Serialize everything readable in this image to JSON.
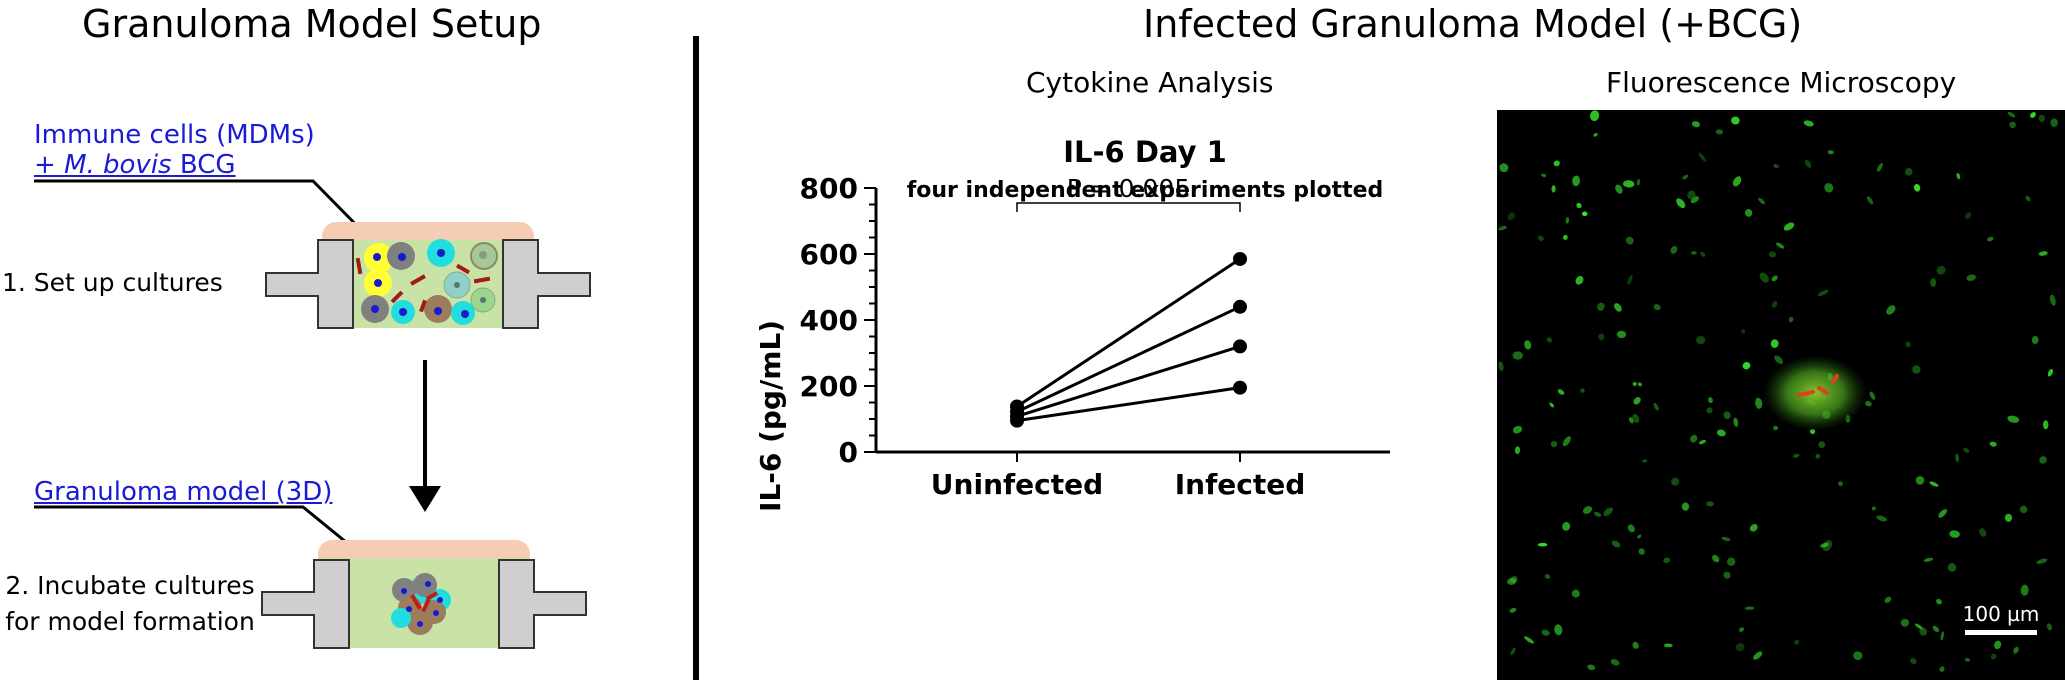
{
  "left_panel": {
    "title": "Granuloma Model Setup",
    "label_top_line1": "Immune cells (MDMs)",
    "label_top_line2_prefix": "+ ",
    "label_top_line2_italic": "M. bovis",
    "label_top_line2_suffix": " BCG",
    "step1": "1. Set up cultures",
    "label_bottom": "Granuloma model (3D)",
    "step2_line1": "2. Incubate cultures",
    "step2_line2": "for model formation"
  },
  "right_panel": {
    "title": "Infected Granuloma Model (+BCG)",
    "cytokine_header": "Cytokine Analysis",
    "microscopy_header": "Fluorescence Microscopy",
    "scale_bar_label": "100 µm"
  },
  "chart_data": {
    "type": "line",
    "title": "IL-6 Day 1",
    "subtitle": "four independent experiments plotted",
    "xlabel": "",
    "ylabel": "IL-6 (pg/mL)",
    "categories": [
      "Uninfected",
      "Infected"
    ],
    "ylim": [
      0,
      800
    ],
    "yticks": [
      0,
      200,
      400,
      600,
      800
    ],
    "grid": false,
    "legend": "none",
    "series": [
      {
        "values": [
          138,
          585
        ]
      },
      {
        "values": [
          122,
          440
        ]
      },
      {
        "values": [
          108,
          320
        ]
      },
      {
        "values": [
          95,
          195
        ]
      }
    ],
    "annotation": "P = 0.005",
    "line_color": "#000000"
  }
}
